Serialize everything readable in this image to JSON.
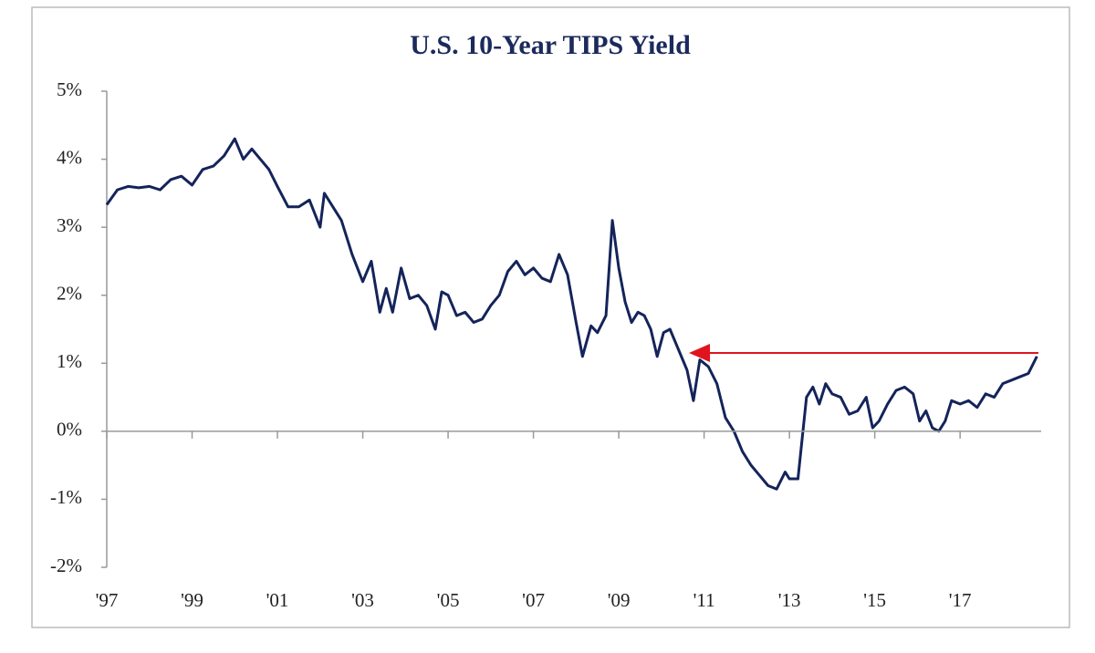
{
  "chart_data": {
    "type": "line",
    "title": "U.S. 10-Year TIPS Yield",
    "x": [
      1997.0,
      1997.25,
      1997.5,
      1997.75,
      1998.0,
      1998.25,
      1998.5,
      1998.75,
      1999.0,
      1999.25,
      1999.5,
      1999.75,
      2000.0,
      2000.2,
      2000.4,
      2000.6,
      2000.8,
      2001.0,
      2001.25,
      2001.5,
      2001.75,
      2002.0,
      2002.1,
      2002.3,
      2002.5,
      2002.75,
      2003.0,
      2003.2,
      2003.4,
      2003.55,
      2003.7,
      2003.9,
      2004.1,
      2004.3,
      2004.5,
      2004.7,
      2004.85,
      2005.0,
      2005.2,
      2005.4,
      2005.6,
      2005.8,
      2006.0,
      2006.2,
      2006.4,
      2006.6,
      2006.8,
      2007.0,
      2007.2,
      2007.4,
      2007.6,
      2007.8,
      2008.0,
      2008.15,
      2008.35,
      2008.5,
      2008.7,
      2008.85,
      2009.0,
      2009.15,
      2009.3,
      2009.45,
      2009.6,
      2009.75,
      2009.9,
      2010.05,
      2010.2,
      2010.4,
      2010.6,
      2010.75,
      2010.9,
      2011.1,
      2011.3,
      2011.5,
      2011.7,
      2011.9,
      2012.1,
      2012.3,
      2012.5,
      2012.7,
      2012.9,
      2013.0,
      2013.2,
      2013.4,
      2013.55,
      2013.7,
      2013.85,
      2014.0,
      2014.2,
      2014.4,
      2014.6,
      2014.8,
      2014.95,
      2015.1,
      2015.3,
      2015.5,
      2015.7,
      2015.9,
      2016.05,
      2016.2,
      2016.35,
      2016.5,
      2016.65,
      2016.8,
      2017.0,
      2017.2,
      2017.4,
      2017.6,
      2017.8,
      2018.0,
      2018.2,
      2018.4,
      2018.6,
      2018.8
    ],
    "series": [
      {
        "name": "U.S. 10-Year TIPS Yield",
        "color": "#14245a",
        "values": [
          3.33,
          3.55,
          3.6,
          3.58,
          3.6,
          3.55,
          3.7,
          3.75,
          3.62,
          3.85,
          3.9,
          4.05,
          4.3,
          4.0,
          4.15,
          4.0,
          3.85,
          3.6,
          3.3,
          3.3,
          3.4,
          3.0,
          3.5,
          3.3,
          3.1,
          2.6,
          2.2,
          2.5,
          1.75,
          2.1,
          1.75,
          2.4,
          1.95,
          2.0,
          1.85,
          1.5,
          2.05,
          2.0,
          1.7,
          1.75,
          1.6,
          1.65,
          1.85,
          2.0,
          2.35,
          2.5,
          2.3,
          2.4,
          2.25,
          2.2,
          2.6,
          2.3,
          1.6,
          1.1,
          1.55,
          1.45,
          1.7,
          3.1,
          2.4,
          1.9,
          1.6,
          1.75,
          1.7,
          1.5,
          1.1,
          1.45,
          1.5,
          1.2,
          0.9,
          0.45,
          1.05,
          0.95,
          0.7,
          0.2,
          0.0,
          -0.3,
          -0.5,
          -0.65,
          -0.8,
          -0.85,
          -0.6,
          -0.7,
          -0.7,
          0.5,
          0.65,
          0.4,
          0.7,
          0.55,
          0.5,
          0.25,
          0.3,
          0.5,
          0.05,
          0.15,
          0.4,
          0.6,
          0.65,
          0.55,
          0.15,
          0.3,
          0.05,
          0.0,
          0.15,
          0.45,
          0.4,
          0.45,
          0.35,
          0.55,
          0.5,
          0.7,
          0.75,
          0.8,
          0.85,
          1.1
        ]
      }
    ],
    "xlim": [
      1997,
      2018.9
    ],
    "xticks": [
      {
        "value": 1997,
        "label": "'97"
      },
      {
        "value": 1999,
        "label": "'99"
      },
      {
        "value": 2001,
        "label": "'01"
      },
      {
        "value": 2003,
        "label": "'03"
      },
      {
        "value": 2005,
        "label": "'05"
      },
      {
        "value": 2007,
        "label": "'07"
      },
      {
        "value": 2009,
        "label": "'09"
      },
      {
        "value": 2011,
        "label": "'11"
      },
      {
        "value": 2013,
        "label": "'13"
      },
      {
        "value": 2015,
        "label": "'15"
      },
      {
        "value": 2017,
        "label": "'17"
      }
    ],
    "ylim": [
      -2,
      5
    ],
    "yticks": [
      {
        "value": -2,
        "label": "-2%"
      },
      {
        "value": -1,
        "label": "-1%"
      },
      {
        "value": 0,
        "label": "0%"
      },
      {
        "value": 1,
        "label": "1%"
      },
      {
        "value": 2,
        "label": "2%"
      },
      {
        "value": 3,
        "label": "3%"
      },
      {
        "value": 4,
        "label": "4%"
      },
      {
        "value": 5,
        "label": "5%"
      }
    ],
    "grid": false
  }
}
